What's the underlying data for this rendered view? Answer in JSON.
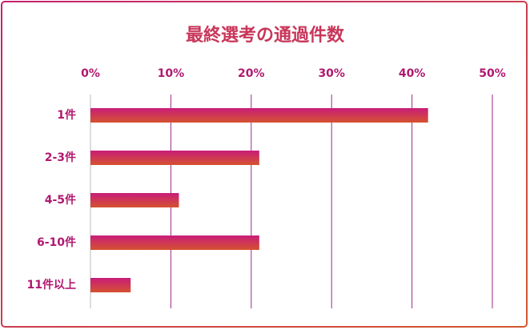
{
  "chart_data": {
    "type": "bar",
    "orientation": "horizontal",
    "title": "最終選考の通過件数",
    "categories": [
      "1件",
      "2-3件",
      "4-5件",
      "6-10件",
      "11件以上"
    ],
    "values": [
      42,
      21,
      11,
      21,
      5
    ],
    "color": "#c81d7a",
    "xlim": [
      0,
      50
    ],
    "xticks": [
      {
        "value": 0,
        "label": "0%"
      },
      {
        "value": 10,
        "label": "10%"
      },
      {
        "value": 20,
        "label": "20%"
      },
      {
        "value": 30,
        "label": "30%"
      },
      {
        "value": 40,
        "label": "40%"
      },
      {
        "value": 50,
        "label": "50%"
      }
    ],
    "grid": true
  }
}
